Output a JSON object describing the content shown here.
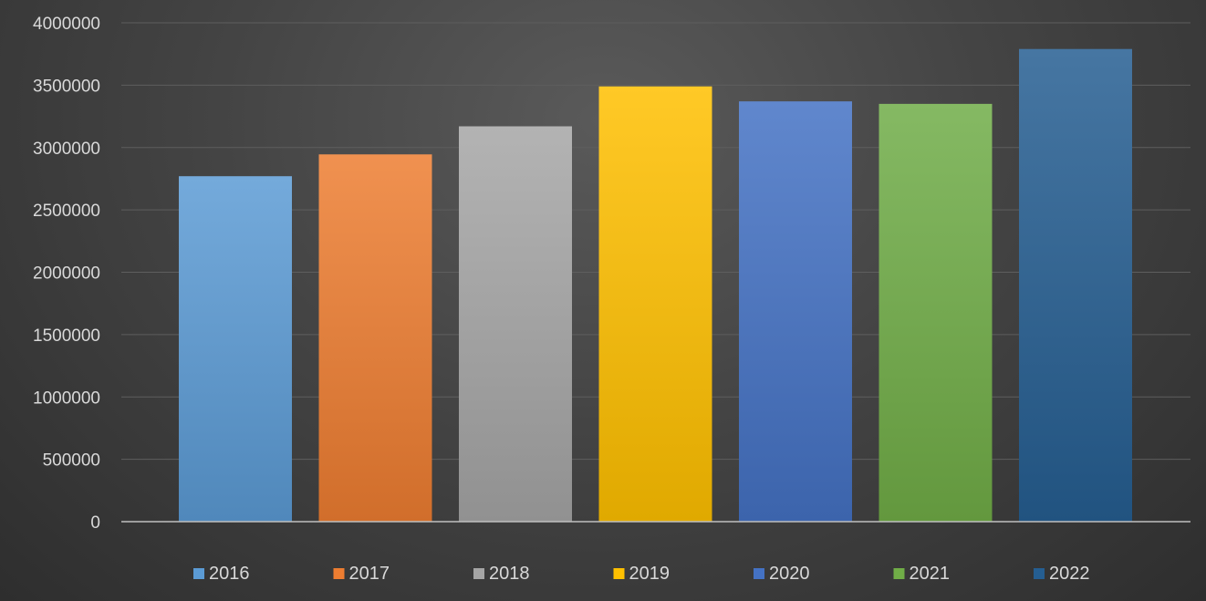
{
  "chart_data": {
    "type": "bar",
    "categories": [
      "2016",
      "2017",
      "2018",
      "2019",
      "2020",
      "2021",
      "2022"
    ],
    "values": [
      2770000,
      2945000,
      3170000,
      3490000,
      3370000,
      3350000,
      3790000
    ],
    "title": "",
    "xlabel": "",
    "ylabel": "",
    "ylim": [
      0,
      4000000
    ],
    "yticks": [
      "0",
      "500000",
      "1000000",
      "1500000",
      "2000000",
      "2500000",
      "3000000",
      "3500000",
      "4000000"
    ],
    "grid": true,
    "legend_position": "bottom",
    "colors": [
      "#5b9bd5",
      "#ed7d31",
      "#a5a5a5",
      "#ffc000",
      "#4472c4",
      "#70ad47",
      "#255e91"
    ]
  }
}
